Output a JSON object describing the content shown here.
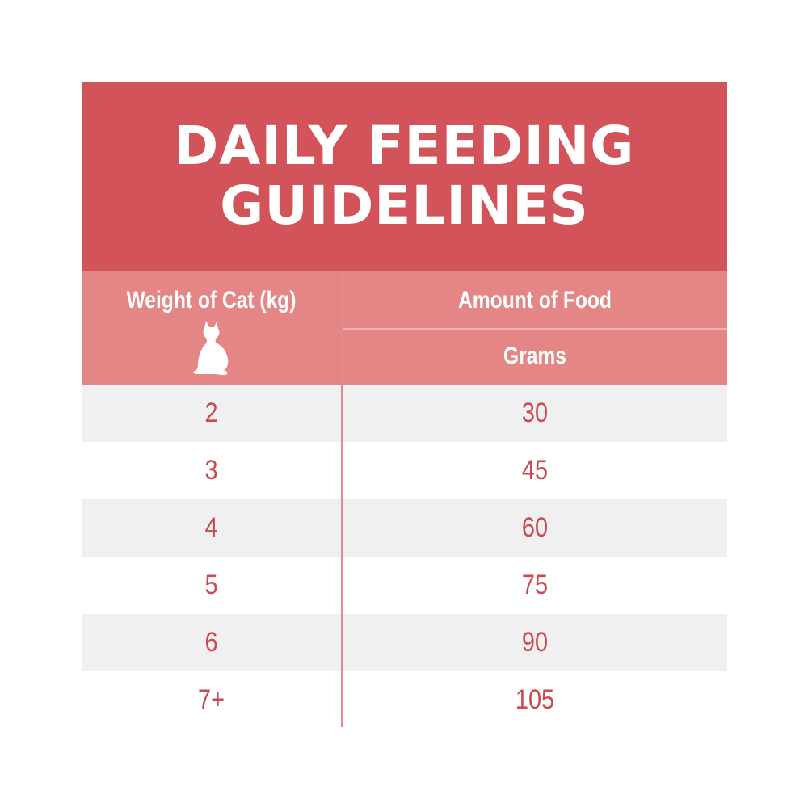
{
  "title": {
    "line1": "DAILY FEEDING",
    "line2": "GUIDELINES"
  },
  "table": {
    "headers": {
      "weight": "Weight of Cat (kg)",
      "amount": "Amount of Food",
      "unit": "Grams"
    },
    "icon": "cat-silhouette-icon",
    "rows": [
      {
        "weight": "2",
        "amount": "30"
      },
      {
        "weight": "3",
        "amount": "45"
      },
      {
        "weight": "4",
        "amount": "60"
      },
      {
        "weight": "5",
        "amount": "75"
      },
      {
        "weight": "6",
        "amount": "90"
      },
      {
        "weight": "7+",
        "amount": "105"
      }
    ]
  },
  "colors": {
    "title_bg": "#d25359",
    "header_bg": "#e48686",
    "value_text": "#cb4a52",
    "stripe": "#f0f0f0"
  }
}
